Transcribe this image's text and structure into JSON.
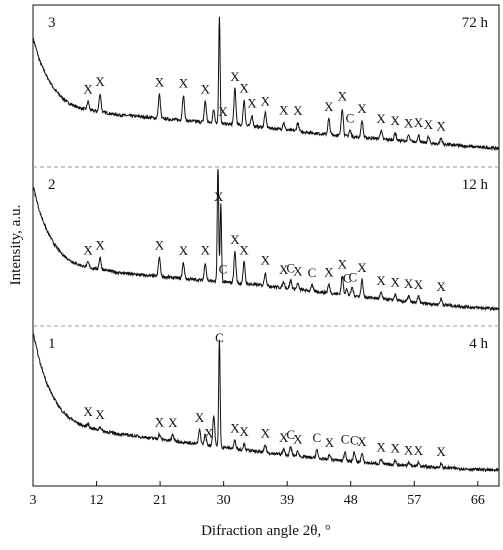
{
  "chart_data": {
    "type": "line",
    "xlabel": "Difraction angle 2θ, °",
    "ylabel": "Intensity, a.u.",
    "xlim": [
      3,
      69
    ],
    "x_ticks": [
      3,
      12,
      21,
      30,
      39,
      48,
      57,
      66
    ],
    "grid": false,
    "panels": [
      {
        "number": "3",
        "time": "72 h",
        "profile": [
          [
            3,
            200
          ],
          [
            4,
            160
          ],
          [
            5,
            135
          ],
          [
            6,
            115
          ],
          [
            7,
            102
          ],
          [
            8,
            92
          ],
          [
            9,
            86
          ],
          [
            10,
            82
          ],
          [
            11,
            80
          ],
          [
            12,
            78
          ],
          [
            13,
            76
          ],
          [
            14,
            74
          ],
          [
            15,
            72
          ],
          [
            17,
            70
          ],
          [
            19,
            68
          ],
          [
            21,
            66
          ],
          [
            23,
            64
          ],
          [
            25,
            62
          ],
          [
            27,
            60
          ],
          [
            29,
            58
          ],
          [
            31,
            56
          ],
          [
            33,
            54
          ],
          [
            35,
            52
          ],
          [
            38,
            48
          ],
          [
            41,
            44
          ],
          [
            44,
            40
          ],
          [
            47,
            37
          ],
          [
            50,
            34
          ],
          [
            53,
            31
          ],
          [
            56,
            28
          ],
          [
            59,
            25
          ],
          [
            62,
            22
          ],
          [
            65,
            19
          ],
          [
            69,
            16
          ]
        ],
        "peaks": [
          {
            "x": 10.8,
            "h": 14
          },
          {
            "x": 12.5,
            "h": 30
          },
          {
            "x": 20.9,
            "h": 40
          },
          {
            "x": 24.3,
            "h": 42
          },
          {
            "x": 27.4,
            "h": 35
          },
          {
            "x": 28.6,
            "h": 22
          },
          {
            "x": 29.4,
            "h": 180
          },
          {
            "x": 31.6,
            "h": 60
          },
          {
            "x": 32.9,
            "h": 42
          },
          {
            "x": 34.0,
            "h": 18
          },
          {
            "x": 35.9,
            "h": 24
          },
          {
            "x": 38.5,
            "h": 12
          },
          {
            "x": 40.5,
            "h": 14
          },
          {
            "x": 44.9,
            "h": 26
          },
          {
            "x": 46.8,
            "h": 46
          },
          {
            "x": 47.9,
            "h": 10
          },
          {
            "x": 49.6,
            "h": 28
          },
          {
            "x": 52.3,
            "h": 14
          },
          {
            "x": 54.3,
            "h": 12
          },
          {
            "x": 56.2,
            "h": 10
          },
          {
            "x": 57.6,
            "h": 12
          },
          {
            "x": 59.0,
            "h": 10
          },
          {
            "x": 60.8,
            "h": 10
          }
        ],
        "labels": [
          {
            "text": "X",
            "x": 10.8,
            "h": 14
          },
          {
            "text": "X",
            "x": 12.5,
            "h": 30
          },
          {
            "text": "X",
            "x": 20.9,
            "h": 40
          },
          {
            "text": "X",
            "x": 24.3,
            "h": 42
          },
          {
            "text": "X",
            "x": 27.4,
            "h": 35
          },
          {
            "text": "X",
            "x": 29.9,
            "h": 180
          },
          {
            "text": "X",
            "x": 31.6,
            "h": 60
          },
          {
            "text": "X",
            "x": 32.9,
            "h": 42
          },
          {
            "text": "X",
            "x": 34.0,
            "h": 18
          },
          {
            "text": "X",
            "x": 35.9,
            "h": 24
          },
          {
            "text": "X",
            "x": 38.5,
            "h": 12
          },
          {
            "text": "X",
            "x": 40.5,
            "h": 14
          },
          {
            "text": "X",
            "x": 44.9,
            "h": 26
          },
          {
            "text": "X",
            "x": 46.8,
            "h": 46
          },
          {
            "text": "C",
            "x": 47.9,
            "h": 10
          },
          {
            "text": "X",
            "x": 49.6,
            "h": 28
          },
          {
            "text": "X",
            "x": 52.3,
            "h": 14
          },
          {
            "text": "X",
            "x": 54.3,
            "h": 12
          },
          {
            "text": "X",
            "x": 56.2,
            "h": 10
          },
          {
            "text": "X",
            "x": 57.6,
            "h": 12
          },
          {
            "text": "X",
            "x": 59.0,
            "h": 10
          },
          {
            "text": "X",
            "x": 60.8,
            "h": 10
          }
        ]
      },
      {
        "number": "2",
        "time": "12 h",
        "profile": [
          [
            3,
            220
          ],
          [
            4,
            175
          ],
          [
            5,
            145
          ],
          [
            6,
            123
          ],
          [
            7,
            108
          ],
          [
            8,
            98
          ],
          [
            9,
            91
          ],
          [
            10,
            87
          ],
          [
            11,
            84
          ],
          [
            12,
            82
          ],
          [
            13,
            80
          ],
          [
            14,
            78
          ],
          [
            15,
            76
          ],
          [
            17,
            73
          ],
          [
            19,
            71
          ],
          [
            21,
            69
          ],
          [
            23,
            67
          ],
          [
            25,
            65
          ],
          [
            27,
            63
          ],
          [
            29,
            61
          ],
          [
            31,
            59
          ],
          [
            33,
            57
          ],
          [
            35,
            55
          ],
          [
            38,
            51
          ],
          [
            41,
            47
          ],
          [
            44,
            43
          ],
          [
            47,
            39
          ],
          [
            50,
            35
          ],
          [
            53,
            31
          ],
          [
            56,
            27
          ],
          [
            59,
            24
          ],
          [
            62,
            21
          ],
          [
            65,
            18
          ],
          [
            69,
            15
          ]
        ],
        "peaks": [
          {
            "x": 10.8,
            "h": 8
          },
          {
            "x": 12.5,
            "h": 20
          },
          {
            "x": 20.9,
            "h": 32
          },
          {
            "x": 24.3,
            "h": 26
          },
          {
            "x": 27.4,
            "h": 30
          },
          {
            "x": 29.2,
            "h": 200
          },
          {
            "x": 29.6,
            "h": 130
          },
          {
            "x": 31.6,
            "h": 52
          },
          {
            "x": 32.9,
            "h": 36
          },
          {
            "x": 35.9,
            "h": 22
          },
          {
            "x": 38.5,
            "h": 10
          },
          {
            "x": 39.5,
            "h": 14
          },
          {
            "x": 40.5,
            "h": 10
          },
          {
            "x": 42.5,
            "h": 10
          },
          {
            "x": 44.9,
            "h": 14
          },
          {
            "x": 46.8,
            "h": 30
          },
          {
            "x": 47.4,
            "h": 10
          },
          {
            "x": 48.2,
            "h": 14
          },
          {
            "x": 49.6,
            "h": 28
          },
          {
            "x": 52.3,
            "h": 10
          },
          {
            "x": 54.3,
            "h": 10
          },
          {
            "x": 56.2,
            "h": 10
          },
          {
            "x": 57.6,
            "h": 10
          },
          {
            "x": 60.8,
            "h": 10
          }
        ],
        "labels": [
          {
            "text": "X",
            "x": 10.8,
            "h": 8
          },
          {
            "text": "X",
            "x": 12.5,
            "h": 20
          },
          {
            "text": "X",
            "x": 20.9,
            "h": 32
          },
          {
            "text": "X",
            "x": 24.3,
            "h": 26
          },
          {
            "text": "X",
            "x": 27.4,
            "h": 30
          },
          {
            "text": "X",
            "x": 29.3,
            "h": 200
          },
          {
            "text": "C",
            "x": 29.9,
            "h": 130
          },
          {
            "text": "X",
            "x": 31.6,
            "h": 52
          },
          {
            "text": "X",
            "x": 32.9,
            "h": 36
          },
          {
            "text": "X",
            "x": 35.9,
            "h": 22
          },
          {
            "text": "X",
            "x": 38.5,
            "h": 10
          },
          {
            "text": "C",
            "x": 39.5,
            "h": 14
          },
          {
            "text": "X",
            "x": 40.5,
            "h": 10
          },
          {
            "text": "C",
            "x": 42.5,
            "h": 10
          },
          {
            "text": "X",
            "x": 44.9,
            "h": 14
          },
          {
            "text": "X",
            "x": 46.8,
            "h": 30
          },
          {
            "text": "C",
            "x": 47.5,
            "h": 10
          },
          {
            "text": "C",
            "x": 48.3,
            "h": 14
          },
          {
            "text": "X",
            "x": 49.6,
            "h": 28
          },
          {
            "text": "X",
            "x": 52.3,
            "h": 10
          },
          {
            "text": "X",
            "x": 54.3,
            "h": 10
          },
          {
            "text": "X",
            "x": 56.2,
            "h": 10
          },
          {
            "text": "X",
            "x": 57.6,
            "h": 10
          },
          {
            "text": "X",
            "x": 60.8,
            "h": 10
          }
        ]
      },
      {
        "number": "1",
        "time": "4 h",
        "profile": [
          [
            3,
            240
          ],
          [
            4,
            190
          ],
          [
            5,
            155
          ],
          [
            6,
            130
          ],
          [
            7,
            112
          ],
          [
            8,
            100
          ],
          [
            9,
            92
          ],
          [
            10,
            86
          ],
          [
            11,
            82
          ],
          [
            12,
            79
          ],
          [
            13,
            76
          ],
          [
            14,
            74
          ],
          [
            15,
            72
          ],
          [
            17,
            69
          ],
          [
            19,
            66
          ],
          [
            21,
            63
          ],
          [
            23,
            60
          ],
          [
            25,
            57
          ],
          [
            27,
            54
          ],
          [
            29,
            51
          ],
          [
            31,
            48
          ],
          [
            33,
            45
          ],
          [
            35,
            42
          ],
          [
            38,
            38
          ],
          [
            41,
            34
          ],
          [
            44,
            30
          ],
          [
            47,
            27
          ],
          [
            50,
            24
          ],
          [
            53,
            21
          ],
          [
            56,
            19
          ],
          [
            59,
            17
          ],
          [
            62,
            15
          ],
          [
            65,
            13
          ],
          [
            69,
            11
          ]
        ],
        "peaks": [
          {
            "x": 10.8,
            "h": 6
          },
          {
            "x": 12.5,
            "h": 6
          },
          {
            "x": 20.9,
            "h": 8
          },
          {
            "x": 22.8,
            "h": 10
          },
          {
            "x": 26.6,
            "h": 24
          },
          {
            "x": 27.4,
            "h": 18
          },
          {
            "x": 28.6,
            "h": 50
          },
          {
            "x": 29.4,
            "h": 178
          },
          {
            "x": 31.6,
            "h": 14
          },
          {
            "x": 32.9,
            "h": 10
          },
          {
            "x": 35.9,
            "h": 12
          },
          {
            "x": 38.5,
            "h": 8
          },
          {
            "x": 39.5,
            "h": 14
          },
          {
            "x": 40.5,
            "h": 8
          },
          {
            "x": 43.2,
            "h": 14
          },
          {
            "x": 45.0,
            "h": 8
          },
          {
            "x": 47.2,
            "h": 16
          },
          {
            "x": 48.5,
            "h": 16
          },
          {
            "x": 49.6,
            "h": 14
          },
          {
            "x": 52.3,
            "h": 8
          },
          {
            "x": 54.3,
            "h": 8
          },
          {
            "x": 56.2,
            "h": 6
          },
          {
            "x": 57.6,
            "h": 6
          },
          {
            "x": 60.8,
            "h": 6
          }
        ],
        "labels": [
          {
            "text": "X",
            "x": 10.8,
            "h": 6
          },
          {
            "text": "X",
            "x": 12.5,
            "h": 6
          },
          {
            "text": "X",
            "x": 20.9,
            "h": 8
          },
          {
            "text": "X",
            "x": 22.8,
            "h": 10
          },
          {
            "text": "X",
            "x": 26.6,
            "h": 24
          },
          {
            "text": "X",
            "x": 27.9,
            "h": 50
          },
          {
            "text": "C",
            "x": 29.4,
            "h": 178
          },
          {
            "text": "X",
            "x": 31.6,
            "h": 14
          },
          {
            "text": "X",
            "x": 32.9,
            "h": 10
          },
          {
            "text": "X",
            "x": 35.9,
            "h": 12
          },
          {
            "text": "X",
            "x": 38.5,
            "h": 8
          },
          {
            "text": "C",
            "x": 39.5,
            "h": 14
          },
          {
            "text": "X",
            "x": 40.5,
            "h": 8
          },
          {
            "text": "C",
            "x": 43.2,
            "h": 14
          },
          {
            "text": "X",
            "x": 45.0,
            "h": 8
          },
          {
            "text": "C",
            "x": 47.2,
            "h": 16
          },
          {
            "text": "C",
            "x": 48.5,
            "h": 16
          },
          {
            "text": "X",
            "x": 49.6,
            "h": 14
          },
          {
            "text": "X",
            "x": 52.3,
            "h": 8
          },
          {
            "text": "X",
            "x": 54.3,
            "h": 8
          },
          {
            "text": "X",
            "x": 56.2,
            "h": 6
          },
          {
            "text": "X",
            "x": 57.6,
            "h": 6
          },
          {
            "text": "X",
            "x": 60.8,
            "h": 6
          }
        ]
      }
    ]
  }
}
